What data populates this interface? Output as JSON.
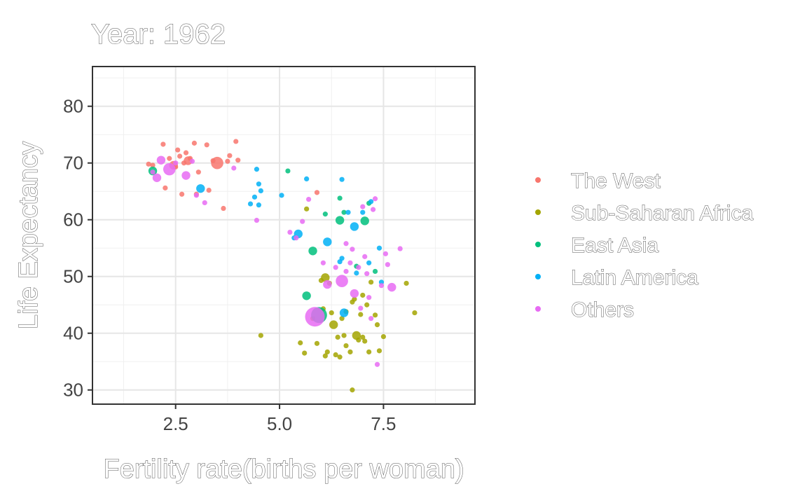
{
  "chart_data": {
    "type": "scatter",
    "title": "Year: 1962",
    "xlabel": "Fertility rate(births per woman)",
    "ylabel": "Life Expectancy",
    "xlim": [
      0.5,
      9.7
    ],
    "ylim": [
      27.5,
      87
    ],
    "x_ticks": [
      2.5,
      5.0,
      7.5
    ],
    "x_tick_labels": [
      "2.5",
      "5.0",
      "7.5"
    ],
    "y_ticks": [
      30,
      40,
      50,
      60,
      70,
      80
    ],
    "y_tick_labels": [
      "30",
      "40",
      "50",
      "60",
      "70",
      "80"
    ],
    "grid": true,
    "legend_position": "right",
    "series": [
      {
        "name": "The West",
        "color": "#F8766D",
        "points": [
          {
            "x": 1.85,
            "y": 69.8,
            "s": 1
          },
          {
            "x": 1.95,
            "y": 69.6,
            "s": 1
          },
          {
            "x": 2.2,
            "y": 73.3,
            "s": 1
          },
          {
            "x": 2.25,
            "y": 65.6,
            "s": 1
          },
          {
            "x": 2.35,
            "y": 70.8,
            "s": 1
          },
          {
            "x": 2.45,
            "y": 69.6,
            "s": 2
          },
          {
            "x": 2.5,
            "y": 69.3,
            "s": 1
          },
          {
            "x": 2.55,
            "y": 72.3,
            "s": 1
          },
          {
            "x": 2.6,
            "y": 71.2,
            "s": 1
          },
          {
            "x": 2.65,
            "y": 64.5,
            "s": 1
          },
          {
            "x": 2.7,
            "y": 70.0,
            "s": 1
          },
          {
            "x": 2.75,
            "y": 71.8,
            "s": 1
          },
          {
            "x": 2.8,
            "y": 70.4,
            "s": 2
          },
          {
            "x": 2.85,
            "y": 70.8,
            "s": 1
          },
          {
            "x": 2.95,
            "y": 73.5,
            "s": 1
          },
          {
            "x": 3.0,
            "y": 64.5,
            "s": 1
          },
          {
            "x": 3.05,
            "y": 68.4,
            "s": 1
          },
          {
            "x": 3.25,
            "y": 73.2,
            "s": 1
          },
          {
            "x": 3.3,
            "y": 65.2,
            "s": 1
          },
          {
            "x": 3.4,
            "y": 70.4,
            "s": 1
          },
          {
            "x": 3.5,
            "y": 70.0,
            "s": 3
          },
          {
            "x": 3.65,
            "y": 62.0,
            "s": 1
          },
          {
            "x": 3.75,
            "y": 70.3,
            "s": 1
          },
          {
            "x": 3.8,
            "y": 71.3,
            "s": 1
          },
          {
            "x": 3.95,
            "y": 73.8,
            "s": 1
          },
          {
            "x": 4.0,
            "y": 70.5,
            "s": 1
          },
          {
            "x": 5.9,
            "y": 64.8,
            "s": 1
          }
        ]
      },
      {
        "name": "Sub-Saharan Africa",
        "color": "#A3A500",
        "points": [
          {
            "x": 4.55,
            "y": 39.6,
            "s": 1
          },
          {
            "x": 5.5,
            "y": 38.3,
            "s": 1
          },
          {
            "x": 5.6,
            "y": 36.5,
            "s": 1
          },
          {
            "x": 5.65,
            "y": 61.9,
            "s": 1
          },
          {
            "x": 5.8,
            "y": 42.6,
            "s": 1
          },
          {
            "x": 5.9,
            "y": 38.2,
            "s": 1
          },
          {
            "x": 6.0,
            "y": 49.3,
            "s": 1
          },
          {
            "x": 6.05,
            "y": 44.3,
            "s": 1
          },
          {
            "x": 6.1,
            "y": 49.8,
            "s": 2
          },
          {
            "x": 6.1,
            "y": 36.0,
            "s": 1
          },
          {
            "x": 6.15,
            "y": 36.7,
            "s": 1
          },
          {
            "x": 6.2,
            "y": 48.8,
            "s": 1
          },
          {
            "x": 6.25,
            "y": 43.6,
            "s": 1
          },
          {
            "x": 6.3,
            "y": 41.5,
            "s": 2
          },
          {
            "x": 6.35,
            "y": 36.2,
            "s": 1
          },
          {
            "x": 6.4,
            "y": 39.3,
            "s": 1
          },
          {
            "x": 6.45,
            "y": 35.8,
            "s": 1
          },
          {
            "x": 6.5,
            "y": 42.6,
            "s": 1
          },
          {
            "x": 6.55,
            "y": 39.6,
            "s": 1
          },
          {
            "x": 6.6,
            "y": 37.8,
            "s": 1
          },
          {
            "x": 6.6,
            "y": 43.8,
            "s": 1
          },
          {
            "x": 6.7,
            "y": 36.7,
            "s": 1
          },
          {
            "x": 6.75,
            "y": 45.5,
            "s": 1
          },
          {
            "x": 6.75,
            "y": 30.0,
            "s": 1
          },
          {
            "x": 6.8,
            "y": 46.0,
            "s": 1
          },
          {
            "x": 6.85,
            "y": 39.6,
            "s": 2
          },
          {
            "x": 6.9,
            "y": 38.8,
            "s": 1
          },
          {
            "x": 6.95,
            "y": 43.3,
            "s": 1
          },
          {
            "x": 7.0,
            "y": 46.7,
            "s": 1
          },
          {
            "x": 7.0,
            "y": 39.3,
            "s": 1
          },
          {
            "x": 7.05,
            "y": 38.6,
            "s": 1
          },
          {
            "x": 7.1,
            "y": 45.0,
            "s": 1
          },
          {
            "x": 7.15,
            "y": 36.7,
            "s": 1
          },
          {
            "x": 7.2,
            "y": 49.0,
            "s": 1
          },
          {
            "x": 7.3,
            "y": 43.2,
            "s": 1
          },
          {
            "x": 7.35,
            "y": 41.5,
            "s": 1
          },
          {
            "x": 7.4,
            "y": 36.9,
            "s": 1
          },
          {
            "x": 7.5,
            "y": 39.4,
            "s": 1
          },
          {
            "x": 8.05,
            "y": 48.8,
            "s": 1
          },
          {
            "x": 8.25,
            "y": 43.6,
            "s": 1
          }
        ]
      },
      {
        "name": "East Asia",
        "color": "#00BF7D",
        "points": [
          {
            "x": 1.95,
            "y": 68.6,
            "s": 2
          },
          {
            "x": 5.2,
            "y": 68.6,
            "s": 1
          },
          {
            "x": 5.65,
            "y": 46.6,
            "s": 2
          },
          {
            "x": 5.8,
            "y": 54.5,
            "s": 2
          },
          {
            "x": 5.95,
            "y": 43.2,
            "s": 4
          },
          {
            "x": 6.1,
            "y": 61.0,
            "s": 1
          },
          {
            "x": 6.45,
            "y": 59.9,
            "s": 2
          },
          {
            "x": 6.45,
            "y": 63.8,
            "s": 1
          },
          {
            "x": 6.55,
            "y": 61.3,
            "s": 1
          },
          {
            "x": 6.85,
            "y": 51.8,
            "s": 1
          },
          {
            "x": 7.05,
            "y": 59.8,
            "s": 2
          },
          {
            "x": 7.15,
            "y": 62.9,
            "s": 1
          },
          {
            "x": 7.3,
            "y": 50.9,
            "s": 1
          }
        ]
      },
      {
        "name": "Latin America",
        "color": "#00B0F6",
        "points": [
          {
            "x": 3.1,
            "y": 65.5,
            "s": 2
          },
          {
            "x": 4.3,
            "y": 62.8,
            "s": 1
          },
          {
            "x": 4.4,
            "y": 64.0,
            "s": 1
          },
          {
            "x": 4.45,
            "y": 68.9,
            "s": 1
          },
          {
            "x": 4.5,
            "y": 62.6,
            "s": 1
          },
          {
            "x": 4.5,
            "y": 66.3,
            "s": 1
          },
          {
            "x": 4.55,
            "y": 65.1,
            "s": 1
          },
          {
            "x": 5.05,
            "y": 64.3,
            "s": 1
          },
          {
            "x": 5.35,
            "y": 56.8,
            "s": 1
          },
          {
            "x": 5.45,
            "y": 57.5,
            "s": 2
          },
          {
            "x": 5.65,
            "y": 67.2,
            "s": 1
          },
          {
            "x": 6.15,
            "y": 56.1,
            "s": 2
          },
          {
            "x": 6.45,
            "y": 52.6,
            "s": 1
          },
          {
            "x": 6.5,
            "y": 67.1,
            "s": 1
          },
          {
            "x": 6.5,
            "y": 53.2,
            "s": 1
          },
          {
            "x": 6.55,
            "y": 43.6,
            "s": 2
          },
          {
            "x": 6.65,
            "y": 61.3,
            "s": 1
          },
          {
            "x": 6.8,
            "y": 58.8,
            "s": 2
          },
          {
            "x": 6.85,
            "y": 50.6,
            "s": 1
          },
          {
            "x": 7.0,
            "y": 61.3,
            "s": 1
          },
          {
            "x": 7.15,
            "y": 52.4,
            "s": 1
          },
          {
            "x": 7.2,
            "y": 63.2,
            "s": 1
          },
          {
            "x": 7.4,
            "y": 55.0,
            "s": 1
          },
          {
            "x": 7.45,
            "y": 49.0,
            "s": 1
          }
        ]
      },
      {
        "name": "Others",
        "color": "#E76BF3",
        "points": [
          {
            "x": 1.95,
            "y": 68.4,
            "s": 1
          },
          {
            "x": 2.05,
            "y": 67.4,
            "s": 2
          },
          {
            "x": 2.15,
            "y": 70.5,
            "s": 2
          },
          {
            "x": 2.35,
            "y": 68.9,
            "s": 3
          },
          {
            "x": 2.5,
            "y": 70.0,
            "s": 1
          },
          {
            "x": 2.75,
            "y": 67.8,
            "s": 2
          },
          {
            "x": 2.9,
            "y": 70.3,
            "s": 1
          },
          {
            "x": 3.0,
            "y": 64.3,
            "s": 1
          },
          {
            "x": 3.2,
            "y": 63.0,
            "s": 1
          },
          {
            "x": 3.9,
            "y": 69.1,
            "s": 1
          },
          {
            "x": 4.45,
            "y": 59.9,
            "s": 1
          },
          {
            "x": 5.25,
            "y": 57.8,
            "s": 1
          },
          {
            "x": 5.4,
            "y": 56.8,
            "s": 1
          },
          {
            "x": 5.55,
            "y": 59.7,
            "s": 1
          },
          {
            "x": 5.7,
            "y": 63.6,
            "s": 1
          },
          {
            "x": 5.85,
            "y": 42.9,
            "s": 5
          },
          {
            "x": 6.05,
            "y": 52.4,
            "s": 1
          },
          {
            "x": 6.15,
            "y": 48.6,
            "s": 2
          },
          {
            "x": 6.35,
            "y": 51.6,
            "s": 1
          },
          {
            "x": 6.5,
            "y": 49.2,
            "s": 3
          },
          {
            "x": 6.6,
            "y": 50.9,
            "s": 1
          },
          {
            "x": 6.6,
            "y": 55.8,
            "s": 1
          },
          {
            "x": 6.7,
            "y": 52.4,
            "s": 1
          },
          {
            "x": 6.75,
            "y": 54.8,
            "s": 1
          },
          {
            "x": 6.8,
            "y": 47.0,
            "s": 2
          },
          {
            "x": 6.9,
            "y": 51.6,
            "s": 1
          },
          {
            "x": 7.0,
            "y": 62.3,
            "s": 1
          },
          {
            "x": 7.05,
            "y": 53.5,
            "s": 1
          },
          {
            "x": 7.1,
            "y": 50.5,
            "s": 1
          },
          {
            "x": 7.15,
            "y": 46.3,
            "s": 1
          },
          {
            "x": 7.2,
            "y": 42.6,
            "s": 1
          },
          {
            "x": 7.25,
            "y": 61.8,
            "s": 1
          },
          {
            "x": 7.3,
            "y": 63.7,
            "s": 1
          },
          {
            "x": 7.35,
            "y": 34.5,
            "s": 1
          },
          {
            "x": 7.45,
            "y": 48.4,
            "s": 1
          },
          {
            "x": 7.55,
            "y": 54.0,
            "s": 1
          },
          {
            "x": 7.6,
            "y": 52.1,
            "s": 1
          },
          {
            "x": 7.7,
            "y": 48.1,
            "s": 2
          },
          {
            "x": 7.9,
            "y": 54.9,
            "s": 1
          },
          {
            "x": 6.95,
            "y": 44.4,
            "s": 1
          }
        ]
      }
    ]
  }
}
